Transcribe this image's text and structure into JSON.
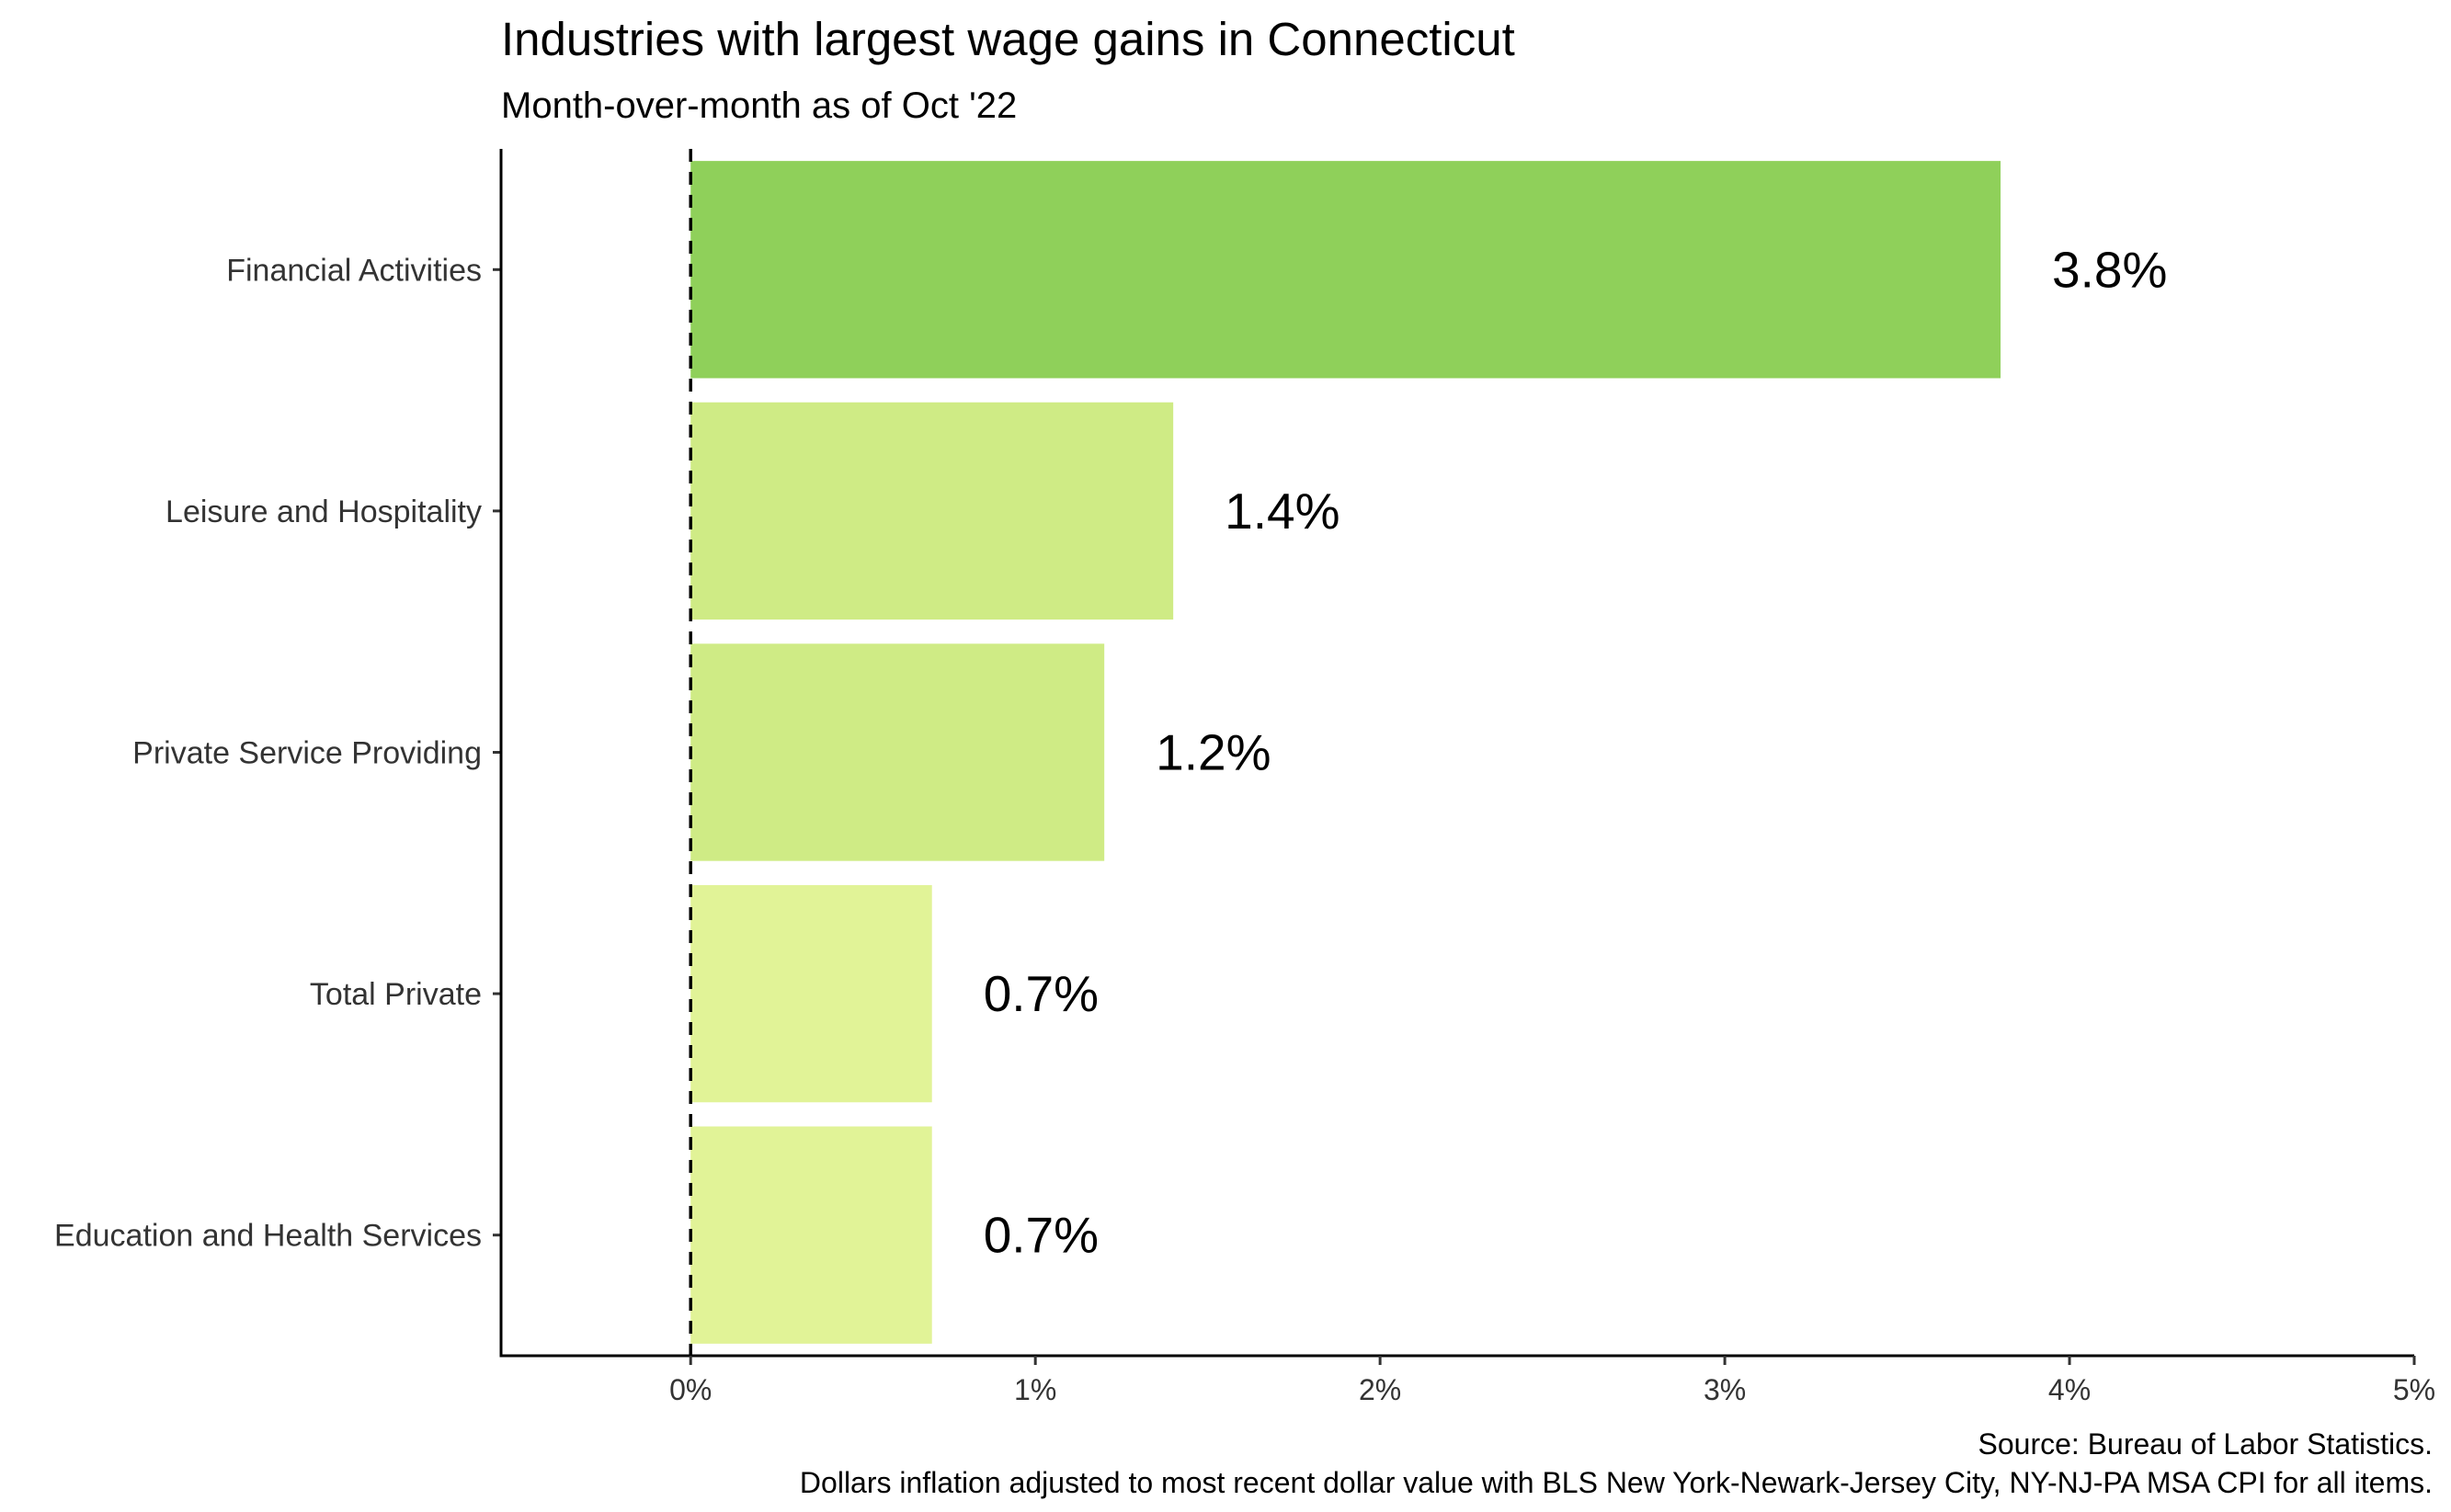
{
  "chart_data": {
    "type": "bar",
    "orientation": "horizontal",
    "title": "Industries with largest wage gains in Connecticut",
    "subtitle": "Month-over-month as of Oct '22",
    "categories": [
      "Financial Activities",
      "Leisure and Hospitality",
      "Private Service Providing",
      "Total Private",
      "Education and Health Services"
    ],
    "values": [
      3.8,
      1.4,
      1.2,
      0.7,
      0.7
    ],
    "data_labels": [
      "3.8%",
      "1.4%",
      "1.2%",
      "0.7%",
      "0.7%"
    ],
    "bar_colors": [
      "#8fd05a",
      "#cfeb85",
      "#cfeb85",
      "#e1f397",
      "#e1f397"
    ],
    "xlim": [
      -0.55,
      5.0
    ],
    "x_ticks": [
      0,
      1,
      2,
      3,
      4,
      5
    ],
    "x_tick_labels": [
      "0%",
      "1%",
      "2%",
      "3%",
      "4%",
      "5%"
    ],
    "reference_line": {
      "x": 0,
      "style": "dashed"
    },
    "grid": false,
    "legend": "none",
    "caption": [
      "Source: Bureau of Labor Statistics.",
      "Dollars inflation adjusted to most recent dollar value with BLS New York-Newark-Jersey City, NY-NJ-PA MSA CPI for all items."
    ]
  }
}
